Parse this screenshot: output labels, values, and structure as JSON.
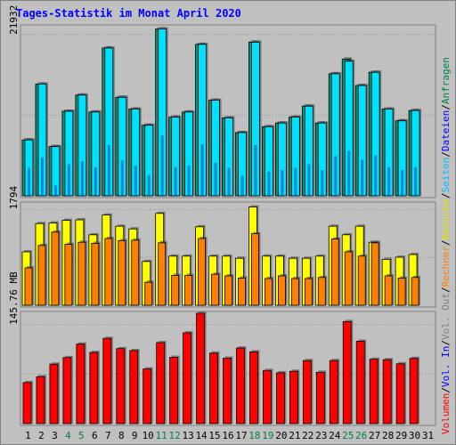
{
  "title": "Tages-Statistik im Monat April 2020",
  "chart_data": [
    {
      "type": "bar",
      "panel": "top",
      "categories": [
        "1",
        "2",
        "3",
        "4",
        "5",
        "6",
        "7",
        "8",
        "9",
        "10",
        "11",
        "12",
        "13",
        "14",
        "15",
        "16",
        "17",
        "18",
        "19",
        "20",
        "21",
        "22",
        "23",
        "24",
        "25",
        "26",
        "27",
        "28",
        "29",
        "30",
        "31"
      ],
      "series": [
        {
          "name": "Anfragen",
          "values": [
            7600,
            15200,
            6700,
            11500,
            13700,
            11400,
            20100,
            13400,
            11800,
            9600,
            22700,
            10700,
            11400,
            20600,
            13000,
            10600,
            8600,
            20900,
            9400,
            9900,
            10700,
            12200,
            9900,
            16600,
            18600,
            15000,
            16800,
            11800,
            10200,
            11600,
            0
          ]
        },
        {
          "name": "Dateien",
          "values": [
            7600,
            15200,
            6700,
            11500,
            13700,
            11400,
            20100,
            13400,
            11800,
            9600,
            22700,
            10700,
            11400,
            20600,
            13000,
            10600,
            8600,
            20900,
            9400,
            9900,
            10700,
            12200,
            9900,
            16600,
            18300,
            15000,
            16800,
            11800,
            10200,
            11600,
            0
          ]
        },
        {
          "name": "Seiten",
          "values": [
            3800,
            5200,
            1400,
            4300,
            4700,
            3900,
            6900,
            4800,
            4100,
            2800,
            8200,
            3900,
            4100,
            7000,
            4500,
            3800,
            2700,
            6900,
            3300,
            3500,
            3800,
            4300,
            3500,
            5400,
            6100,
            4900,
            5500,
            3900,
            3500,
            3900,
            0
          ]
        }
      ],
      "y_tick_label": "21932",
      "ylim": [
        0,
        23000
      ]
    },
    {
      "type": "bar",
      "panel": "middle",
      "categories": [
        "1",
        "2",
        "3",
        "4",
        "5",
        "6",
        "7",
        "8",
        "9",
        "10",
        "11",
        "12",
        "13",
        "14",
        "15",
        "16",
        "17",
        "18",
        "19",
        "20",
        "21",
        "22",
        "23",
        "24",
        "25",
        "26",
        "27",
        "28",
        "29",
        "30",
        "31"
      ],
      "series": [
        {
          "name": "Besuche",
          "values": [
            1000,
            1530,
            1540,
            1590,
            1600,
            1320,
            1690,
            1480,
            1430,
            820,
            1720,
            920,
            920,
            1470,
            920,
            920,
            880,
            1840,
            920,
            920,
            880,
            880,
            920,
            1480,
            1320,
            1480,
            1180,
            860,
            900,
            950,
            0
          ]
        },
        {
          "name": "Rechner",
          "values": [
            700,
            1120,
            1370,
            1140,
            1180,
            1160,
            1250,
            1210,
            1220,
            430,
            1170,
            560,
            560,
            1250,
            580,
            550,
            510,
            1340,
            500,
            550,
            500,
            500,
            520,
            1240,
            1000,
            920,
            1170,
            550,
            510,
            520,
            0
          ]
        }
      ],
      "y_tick_label": "1794",
      "ylim": [
        0,
        1900
      ]
    },
    {
      "type": "bar",
      "panel": "bottom",
      "categories": [
        "1",
        "2",
        "3",
        "4",
        "5",
        "6",
        "7",
        "8",
        "9",
        "10",
        "11",
        "12",
        "13",
        "14",
        "15",
        "16",
        "17",
        "18",
        "19",
        "20",
        "21",
        "22",
        "23",
        "24",
        "25",
        "26",
        "27",
        "28",
        "29",
        "30",
        "31"
      ],
      "series": [
        {
          "name": "Volumen",
          "values": [
            60.5,
            69.2,
            87.6,
            97.3,
            117.2,
            104.9,
            125.6,
            110.5,
            107.7,
            80.6,
            119.3,
            97.8,
            133.8,
            162.6,
            103.9,
            96.5,
            111.4,
            105.8,
            78.3,
            74.9,
            77.1,
            92.9,
            75.6,
            92.9,
            150.3,
            121.4,
            94.9,
            94.2,
            88.1,
            96.1,
            0
          ]
        }
      ],
      "y_tick_label": "145.76 MB",
      "ylim": [
        0,
        162.6
      ]
    }
  ],
  "side_legend": [
    {
      "text": "Anfragen",
      "color": "#008040"
    },
    {
      "text": "/",
      "color": "#000000"
    },
    {
      "text": "Dateien",
      "color": "#0000ff"
    },
    {
      "text": "/",
      "color": "#000000"
    },
    {
      "text": "Seiten",
      "color": "#00c0ff"
    },
    {
      "text": "/",
      "color": "#000000"
    },
    {
      "text": "Besuche",
      "color": "#e0e000"
    },
    {
      "text": "/",
      "color": "#000000"
    },
    {
      "text": "Rechner",
      "color": "#ff8000"
    },
    {
      "text": "/",
      "color": "#000000"
    },
    {
      "text": "Vol. Out",
      "color": "#808080"
    },
    {
      "text": "/",
      "color": "#000000"
    },
    {
      "text": "Vol. In",
      "color": "#0000ff"
    },
    {
      "text": "/",
      "color": "#000000"
    },
    {
      "text": "Volumen",
      "color": "#ff0000"
    }
  ],
  "x_labels": [
    {
      "text": "1",
      "color": "#000000"
    },
    {
      "text": "2",
      "color": "#000000"
    },
    {
      "text": "3",
      "color": "#000000"
    },
    {
      "text": "4",
      "color": "#008040"
    },
    {
      "text": "5",
      "color": "#008040"
    },
    {
      "text": "6",
      "color": "#000000"
    },
    {
      "text": "7",
      "color": "#000000"
    },
    {
      "text": "8",
      "color": "#000000"
    },
    {
      "text": "9",
      "color": "#000000"
    },
    {
      "text": "10",
      "color": "#000000"
    },
    {
      "text": "11",
      "color": "#008040"
    },
    {
      "text": "12",
      "color": "#008040"
    },
    {
      "text": "13",
      "color": "#000000"
    },
    {
      "text": "14",
      "color": "#000000"
    },
    {
      "text": "15",
      "color": "#000000"
    },
    {
      "text": "16",
      "color": "#000000"
    },
    {
      "text": "17",
      "color": "#000000"
    },
    {
      "text": "18",
      "color": "#008040"
    },
    {
      "text": "19",
      "color": "#008040"
    },
    {
      "text": "20",
      "color": "#000000"
    },
    {
      "text": "21",
      "color": "#000000"
    },
    {
      "text": "22",
      "color": "#000000"
    },
    {
      "text": "23",
      "color": "#000000"
    },
    {
      "text": "24",
      "color": "#000000"
    },
    {
      "text": "25",
      "color": "#008040"
    },
    {
      "text": "26",
      "color": "#008040"
    },
    {
      "text": "27",
      "color": "#000000"
    },
    {
      "text": "28",
      "color": "#000000"
    },
    {
      "text": "29",
      "color": "#000000"
    },
    {
      "text": "30",
      "color": "#000000"
    },
    {
      "text": "31",
      "color": "#000000"
    }
  ],
  "colors": {
    "anfragen_face": "#009878",
    "dateien_face": "#00e0ff",
    "seiten_face": "#0050b0",
    "besuche_face": "#ffff00",
    "rechner_face": "#ff8000",
    "volumen_face": "#ff0000",
    "panel_bg": "#c0c0c0"
  }
}
